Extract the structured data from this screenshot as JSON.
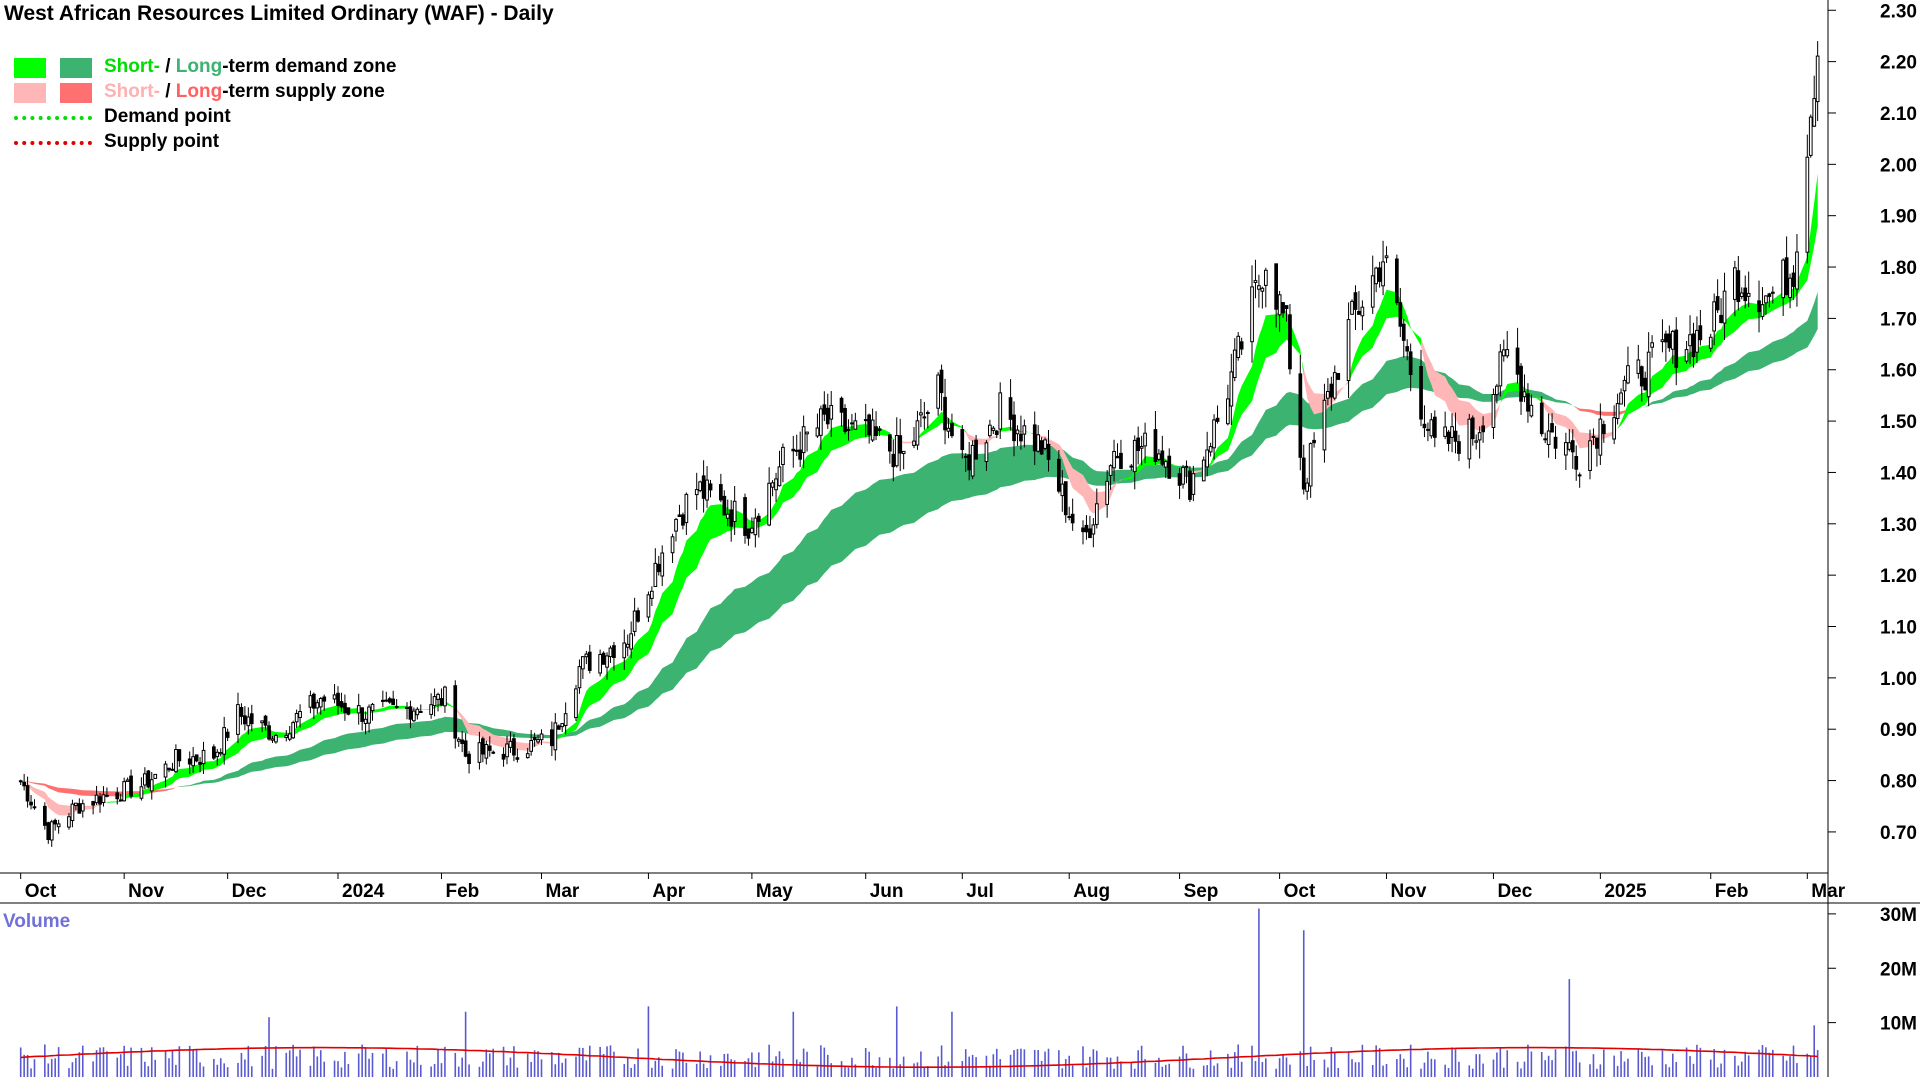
{
  "title": "West African Resources Limited Ordinary (WAF) - Daily",
  "legend": {
    "demand_short": "Short-",
    "demand_sep": " / ",
    "demand_long": "Long",
    "demand_rest": "-term demand zone",
    "supply_short": "Short-",
    "supply_sep": " / ",
    "supply_long": "Long",
    "supply_rest": "-term supply zone",
    "demand_point": "Demand point",
    "supply_point": "Supply point"
  },
  "colors": {
    "short_demand": "#00ff00",
    "long_demand": "#3cb371",
    "short_supply": "#ffb6b6",
    "long_supply": "#ff7070",
    "overlap": "#ff6a1a",
    "demand_point": "#00dd00",
    "supply_point": "#e00000",
    "volume_bar": "#5a5ad0",
    "volume_avg": "#e00000"
  },
  "chart_data": {
    "type": "candlestick",
    "title": "West African Resources Limited Ordinary (WAF) - Daily",
    "xlabel": "",
    "ylabel": "",
    "ylim": [
      0.62,
      2.32
    ],
    "y_ticks": [
      "0.70",
      "0.80",
      "0.90",
      "1.00",
      "1.10",
      "1.20",
      "1.30",
      "1.40",
      "1.50",
      "1.60",
      "1.70",
      "1.80",
      "1.90",
      "2.00",
      "2.10",
      "2.20",
      "2.30"
    ],
    "x_ticks": [
      "Oct",
      "Nov",
      "Dec",
      "2024",
      "Feb",
      "Mar",
      "Apr",
      "May",
      "Jun",
      "Jul",
      "Aug",
      "Sep",
      "Oct",
      "Nov",
      "Dec",
      "2025",
      "Feb",
      "Mar"
    ],
    "price_path": [
      {
        "date": "2023-10-02",
        "close": 0.8
      },
      {
        "date": "2023-10-10",
        "close": 0.7
      },
      {
        "date": "2023-10-18",
        "close": 0.75
      },
      {
        "date": "2023-10-26",
        "close": 0.77
      },
      {
        "date": "2023-11-06",
        "close": 0.79
      },
      {
        "date": "2023-11-16",
        "close": 0.84
      },
      {
        "date": "2023-11-27",
        "close": 0.85
      },
      {
        "date": "2023-12-04",
        "close": 0.93
      },
      {
        "date": "2023-12-15",
        "close": 0.89
      },
      {
        "date": "2023-12-28",
        "close": 0.96
      },
      {
        "date": "2024-01-10",
        "close": 0.93
      },
      {
        "date": "2024-01-22",
        "close": 0.94
      },
      {
        "date": "2024-02-02",
        "close": 0.96
      },
      {
        "date": "2024-02-08",
        "close": 0.85
      },
      {
        "date": "2024-02-22",
        "close": 0.86
      },
      {
        "date": "2024-03-04",
        "close": 0.88
      },
      {
        "date": "2024-03-12",
        "close": 1.02
      },
      {
        "date": "2024-03-26",
        "close": 1.08
      },
      {
        "date": "2024-04-08",
        "close": 1.3
      },
      {
        "date": "2024-04-15",
        "close": 1.37
      },
      {
        "date": "2024-04-30",
        "close": 1.3
      },
      {
        "date": "2024-05-10",
        "close": 1.42
      },
      {
        "date": "2024-05-22",
        "close": 1.5
      },
      {
        "date": "2024-06-04",
        "close": 1.47
      },
      {
        "date": "2024-06-14",
        "close": 1.43
      },
      {
        "date": "2024-06-24",
        "close": 1.56
      },
      {
        "date": "2024-07-01",
        "close": 1.41
      },
      {
        "date": "2024-07-12",
        "close": 1.52
      },
      {
        "date": "2024-07-24",
        "close": 1.45
      },
      {
        "date": "2024-08-05",
        "close": 1.26
      },
      {
        "date": "2024-08-14",
        "close": 1.44
      },
      {
        "date": "2024-08-26",
        "close": 1.45
      },
      {
        "date": "2024-09-05",
        "close": 1.38
      },
      {
        "date": "2024-09-13",
        "close": 1.5
      },
      {
        "date": "2024-09-20",
        "close": 1.65
      },
      {
        "date": "2024-09-27",
        "close": 1.82
      },
      {
        "date": "2024-10-03",
        "close": 1.68
      },
      {
        "date": "2024-10-08",
        "close": 1.38
      },
      {
        "date": "2024-10-21",
        "close": 1.68
      },
      {
        "date": "2024-10-31",
        "close": 1.82
      },
      {
        "date": "2024-11-08",
        "close": 1.6
      },
      {
        "date": "2024-11-15",
        "close": 1.45
      },
      {
        "date": "2024-11-27",
        "close": 1.48
      },
      {
        "date": "2024-12-06",
        "close": 1.63
      },
      {
        "date": "2024-12-16",
        "close": 1.49
      },
      {
        "date": "2024-12-27",
        "close": 1.43
      },
      {
        "date": "2025-01-08",
        "close": 1.56
      },
      {
        "date": "2025-01-20",
        "close": 1.63
      },
      {
        "date": "2025-02-03",
        "close": 1.68
      },
      {
        "date": "2025-02-10",
        "close": 1.78
      },
      {
        "date": "2025-02-20",
        "close": 1.74
      },
      {
        "date": "2025-02-27",
        "close": 1.8
      },
      {
        "date": "2025-03-03",
        "close": 2.05
      },
      {
        "date": "2025-03-06",
        "close": 2.23
      }
    ],
    "volume": {
      "label": "Volume",
      "y_ticks": [
        "10M",
        "20M",
        "30M"
      ],
      "ylim": [
        0,
        32000000
      ],
      "average_level": 4500000,
      "spikes": [
        {
          "date": "2023-12-13",
          "value": 11000000
        },
        {
          "date": "2024-02-08",
          "value": 12000000
        },
        {
          "date": "2024-04-01",
          "value": 13000000
        },
        {
          "date": "2024-05-13",
          "value": 12000000
        },
        {
          "date": "2024-06-12",
          "value": 13000000
        },
        {
          "date": "2024-06-28",
          "value": 12000000
        },
        {
          "date": "2024-09-25",
          "value": 31000000
        },
        {
          "date": "2024-10-08",
          "value": 27000000
        },
        {
          "date": "2024-12-24",
          "value": 18000000
        },
        {
          "date": "2025-03-05",
          "value": 9500000
        }
      ]
    }
  }
}
